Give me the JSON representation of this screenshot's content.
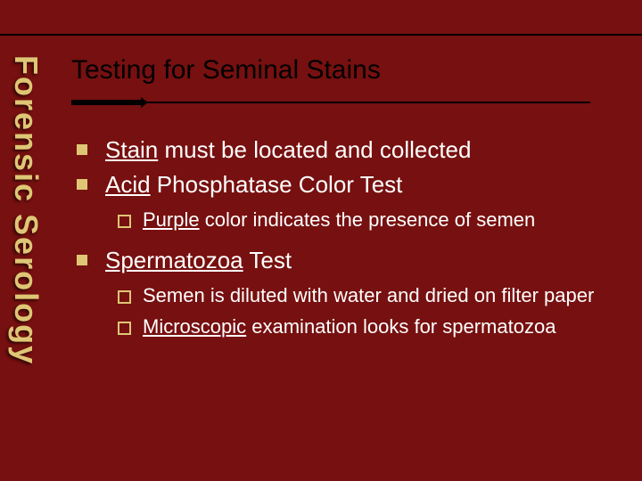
{
  "colors": {
    "background": "#771010",
    "accent": "#dec675",
    "line": "#000000",
    "body_text": "#ffffff",
    "title_text": "#000000"
  },
  "typography": {
    "title_fontsize": 30,
    "bullet_fontsize": 26,
    "sub_fontsize": 22,
    "sidebar_fontsize": 36,
    "font_family": "Arial"
  },
  "sidebar": {
    "label": "Forensic Serology"
  },
  "title": "Testing for Seminal Stains",
  "bullets": [
    {
      "prefix_u": "Stain",
      "rest": " must be located and collected"
    },
    {
      "prefix_u": "Acid",
      "rest": " Phosphatase Color Test",
      "sub": [
        {
          "prefix_u": "Purple",
          "rest": " color indicates the presence of semen"
        }
      ]
    },
    {
      "prefix_u": "Spermatozoa",
      "rest": " Test",
      "sub": [
        {
          "prefix_u": "",
          "rest": "Semen is diluted with water and dried on filter paper"
        },
        {
          "prefix_u": "Microscopic",
          "rest": " examination looks for spermatozoa"
        }
      ]
    }
  ]
}
